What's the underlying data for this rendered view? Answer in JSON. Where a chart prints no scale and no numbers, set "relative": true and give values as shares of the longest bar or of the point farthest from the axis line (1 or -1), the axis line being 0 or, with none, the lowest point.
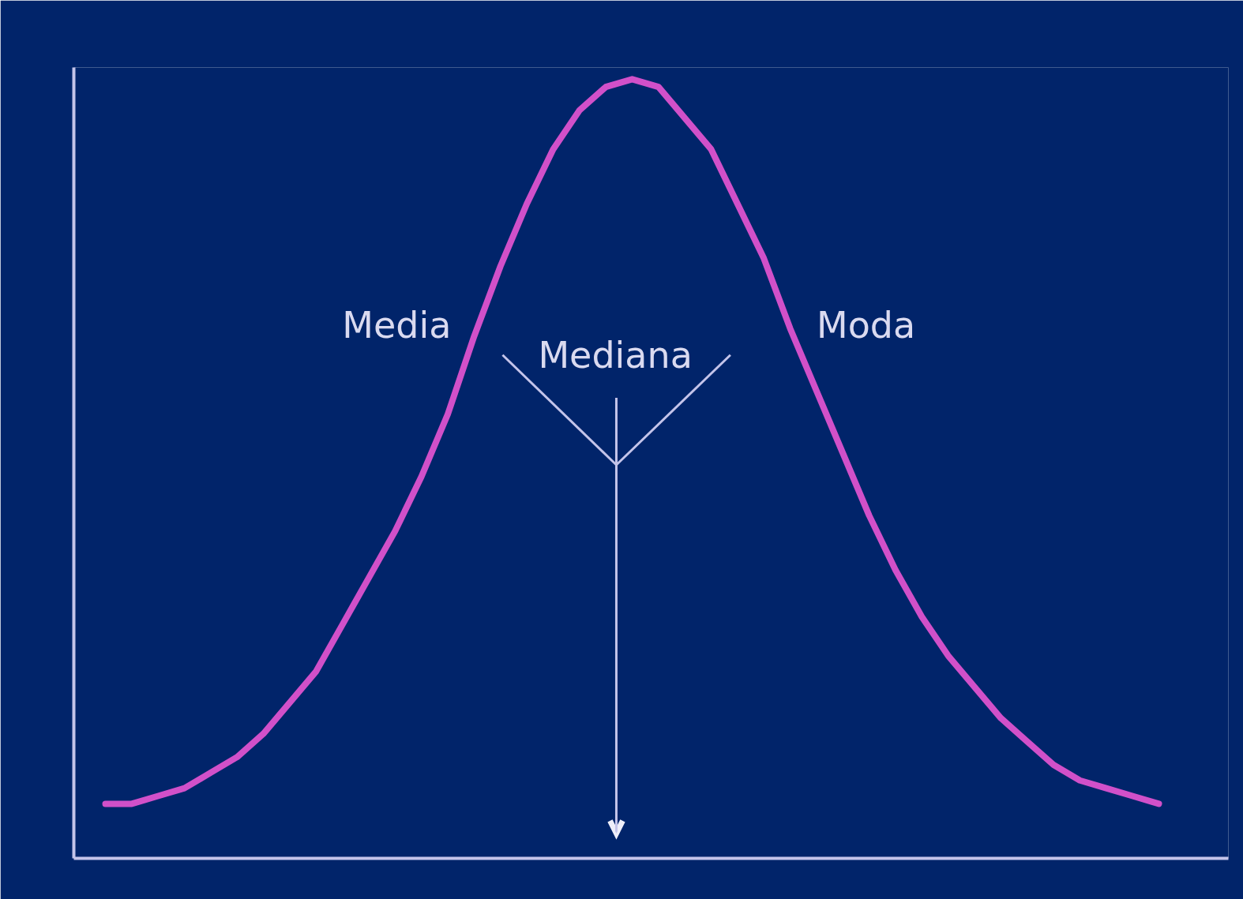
{
  "chart_data": {
    "type": "line",
    "relative": true,
    "line_style": "solid",
    "categories": [
      null,
      null,
      null,
      null,
      null,
      null,
      null,
      null,
      null,
      null,
      null,
      null,
      null,
      null,
      null,
      null,
      null,
      null,
      null,
      null,
      null,
      null,
      null,
      null,
      null,
      null,
      null,
      null,
      null,
      null,
      null,
      null,
      null,
      null,
      null,
      null,
      null,
      null,
      null,
      null,
      null
    ],
    "series": [
      {
        "color": "#d150c9",
        "values": [
          0.07,
          0.07,
          0.08,
          0.09,
          0.11,
          0.13,
          0.16,
          0.2,
          0.24,
          0.3,
          0.36,
          0.42,
          0.49,
          0.57,
          0.67,
          0.76,
          0.84,
          0.91,
          0.96,
          0.99,
          1.0,
          0.99,
          0.95,
          0.91,
          0.84,
          0.77,
          0.68,
          0.6,
          0.52,
          0.44,
          0.37,
          0.31,
          0.26,
          0.22,
          0.18,
          0.15,
          0.12,
          0.1,
          0.09,
          0.08,
          0.07
        ]
      }
    ],
    "annotations": [
      "Media",
      "Mediana",
      "Moda"
    ]
  }
}
